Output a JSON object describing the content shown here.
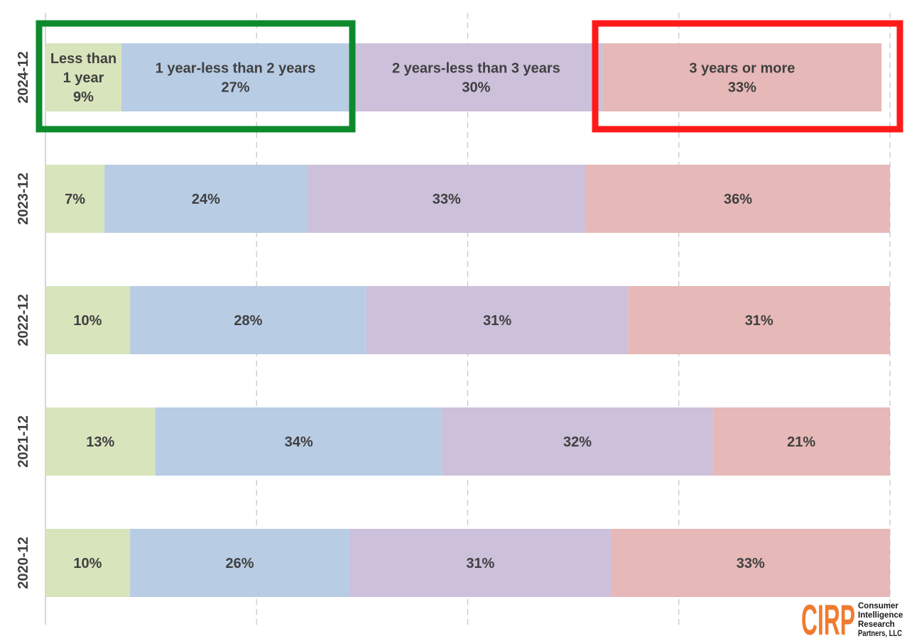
{
  "chart_data": {
    "type": "bar",
    "orientation": "horizontal",
    "stacked": "100%",
    "categories": [
      "2024-12",
      "2023-12",
      "2022-12",
      "2021-12",
      "2020-12"
    ],
    "series": [
      {
        "key": "lt1",
        "values": [
          9,
          7,
          10,
          13,
          10
        ],
        "color": "#d8e4bc"
      },
      {
        "key": "y1_2",
        "values": [
          27,
          24,
          28,
          34,
          26
        ],
        "color": "#b8cce4"
      },
      {
        "key": "y2_3",
        "values": [
          30,
          33,
          31,
          32,
          31
        ],
        "color": "#ccc0da"
      },
      {
        "key": "y3p",
        "values": [
          33,
          36,
          31,
          21,
          33
        ],
        "color": "#e6b8b7"
      }
    ],
    "data_labels": [
      [
        [
          "Less than",
          "1 year",
          "9%"
        ],
        [
          "1 year-less than 2 years",
          "27%"
        ],
        [
          "2 years-less than 3 years",
          "30%"
        ],
        [
          "3 years or more",
          "33%"
        ]
      ],
      [
        [
          "7%"
        ],
        [
          "24%"
        ],
        [
          "33%"
        ],
        [
          "36%"
        ]
      ],
      [
        [
          "10%"
        ],
        [
          "28%"
        ],
        [
          "31%"
        ],
        [
          "31%"
        ]
      ],
      [
        [
          "13%"
        ],
        [
          "34%"
        ],
        [
          "32%"
        ],
        [
          "21%"
        ]
      ],
      [
        [
          "10%"
        ],
        [
          "26%"
        ],
        [
          "31%"
        ],
        [
          "33%"
        ]
      ]
    ],
    "title": "",
    "xlabel": "",
    "ylabel": "",
    "xlim": [
      0,
      100
    ],
    "grid": "vertical dashed",
    "legend": "none (series named by labels on top bar)",
    "highlights": [
      {
        "color": "#0e8a2c",
        "covers": "2024-12 segments: Less than 1 year, 1 year-less than 2 years"
      },
      {
        "color": "#ff1a1a",
        "covers": "2024-12 segment: 3 years or more"
      }
    ]
  },
  "logo": {
    "mark": "CIRP",
    "lines": [
      "Consumer",
      "Intelligence",
      "Research",
      "Partners, LLC"
    ]
  },
  "colors": {
    "label_text": "#404040",
    "grid": "#c8c8c8",
    "logo_orange": "#f07b2f"
  }
}
